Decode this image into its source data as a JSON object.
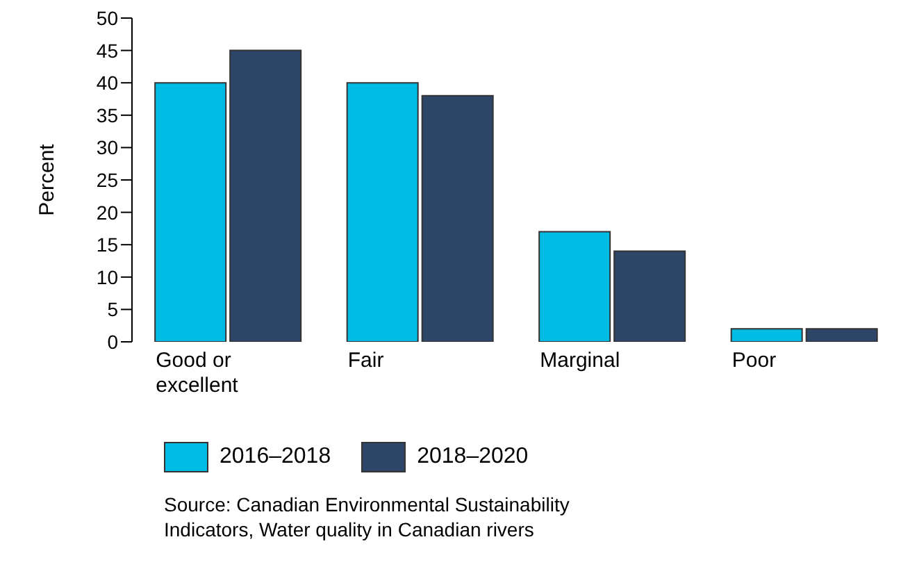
{
  "chart_data": {
    "type": "bar",
    "ylabel": "Percent",
    "categories": [
      "Good or excellent",
      "Fair",
      "Marginal",
      "Poor"
    ],
    "series": [
      {
        "name": "2016–2018",
        "color": "#00bce4",
        "values": [
          40,
          40,
          17,
          2
        ]
      },
      {
        "name": "2018–2020",
        "color": "#2d4567",
        "values": [
          45,
          38,
          14,
          2
        ]
      }
    ],
    "ylim": [
      0,
      50
    ],
    "yticks": [
      0,
      5,
      10,
      15,
      20,
      25,
      30,
      35,
      40,
      45,
      50
    ],
    "legend": "bottom",
    "annotations": [
      "Source: Canadian Environmental Sustainability Indicators, Water quality in Canadian rivers"
    ]
  }
}
